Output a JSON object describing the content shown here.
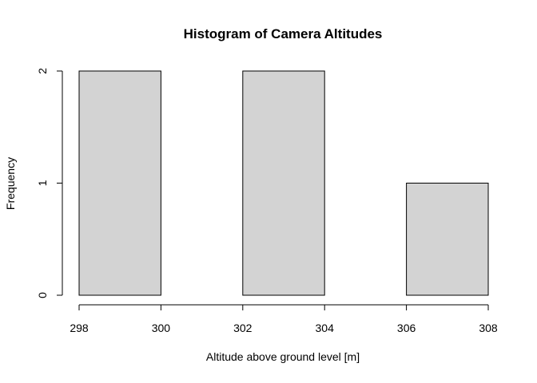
{
  "chart_data": {
    "type": "bar",
    "title": "Histogram of Camera Altitudes",
    "xlabel": "Altitude above ground level [m]",
    "ylabel": "Frequency",
    "bins": [
      {
        "start": 298,
        "end": 300,
        "count": 2
      },
      {
        "start": 300,
        "end": 302,
        "count": 0
      },
      {
        "start": 302,
        "end": 304,
        "count": 2
      },
      {
        "start": 304,
        "end": 306,
        "count": 0
      },
      {
        "start": 306,
        "end": 308,
        "count": 1
      }
    ],
    "xlim": [
      298,
      308
    ],
    "ylim": [
      0,
      2
    ],
    "x_ticks": [
      "298",
      "300",
      "302",
      "304",
      "306",
      "308"
    ],
    "y_ticks": [
      "0",
      "1",
      "2"
    ],
    "bar_fill": "#d3d3d3",
    "bar_stroke": "#000000",
    "grid": false
  }
}
